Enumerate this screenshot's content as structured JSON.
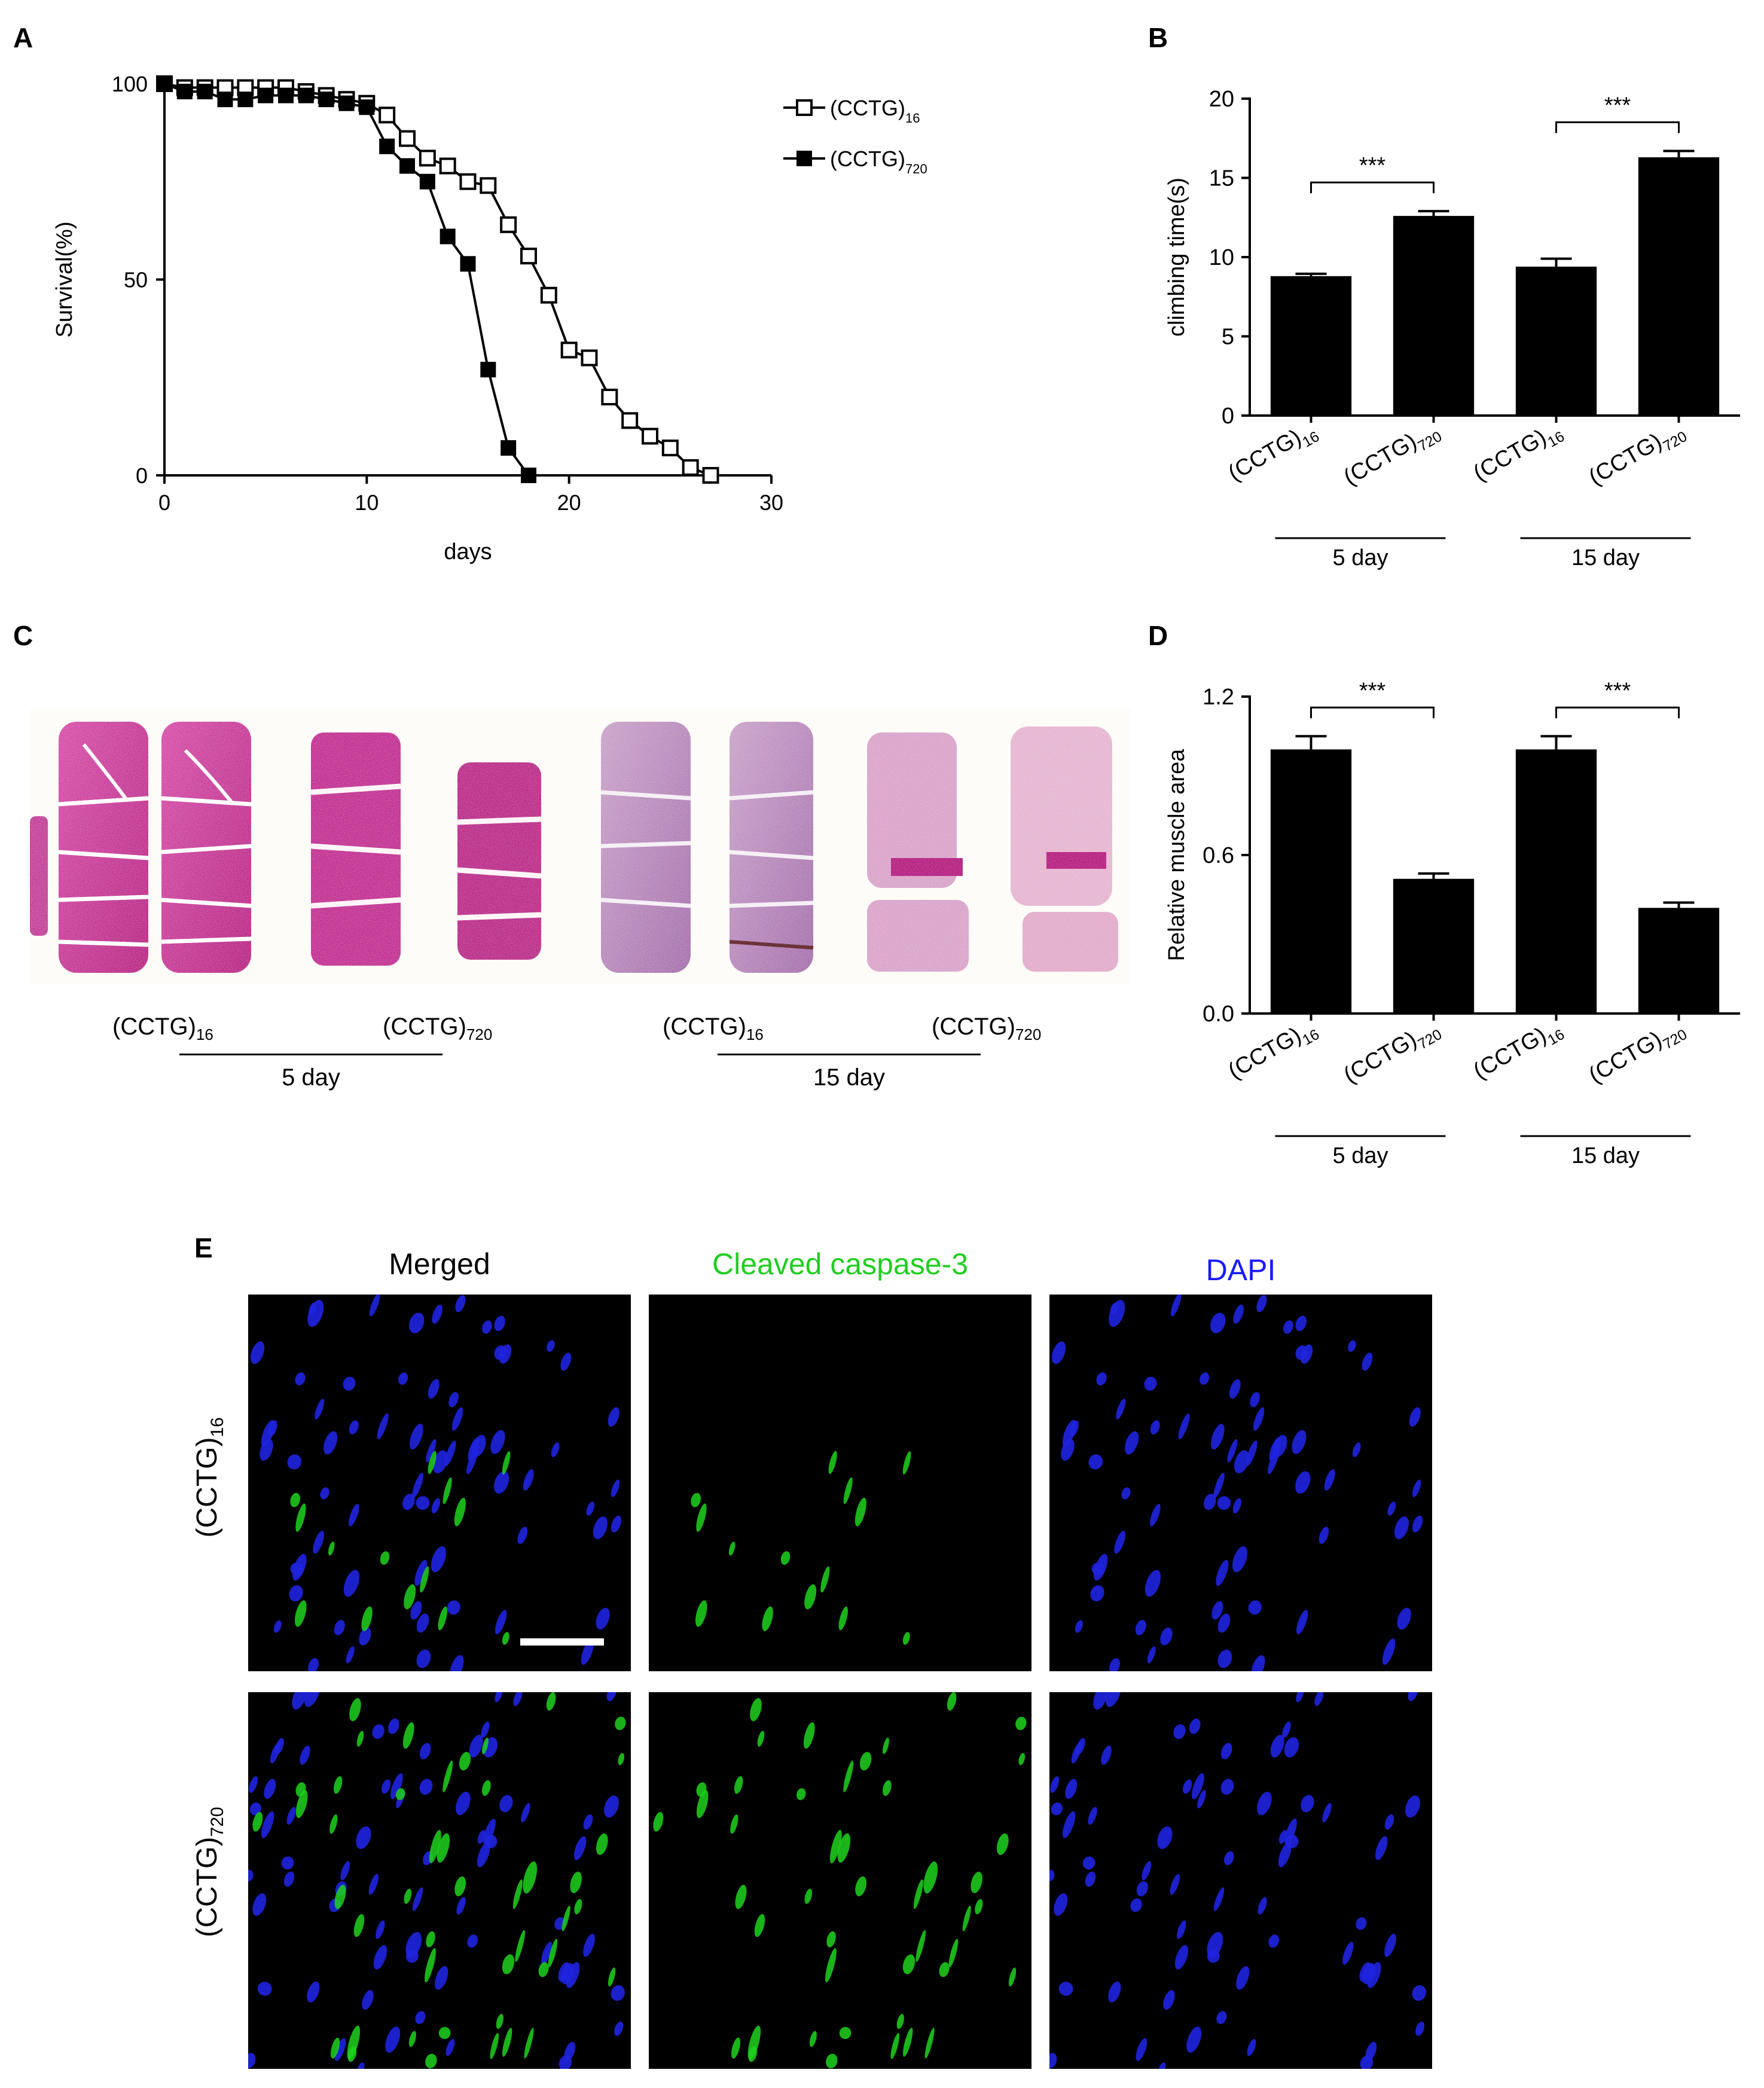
{
  "panel_letters": [
    "A",
    "B",
    "C",
    "D",
    "E"
  ],
  "chart_data": [
    {
      "panel": "A",
      "type": "line",
      "xlabel": "days",
      "ylabel": "Survival(%)",
      "xlim": [
        0,
        30
      ],
      "ylim": [
        0,
        100
      ],
      "xticks": [
        "0",
        "10",
        "20",
        "30"
      ],
      "yticks": [
        "0",
        "50",
        "100"
      ],
      "legend": "top-right",
      "series": [
        {
          "name": "(CCTG)16",
          "marker": "open-square",
          "points": [
            [
              0,
              100
            ],
            [
              1,
              99
            ],
            [
              2,
              99
            ],
            [
              3,
              99
            ],
            [
              4,
              99
            ],
            [
              5,
              99
            ],
            [
              6,
              99
            ],
            [
              7,
              98
            ],
            [
              8,
              97
            ],
            [
              9,
              96
            ],
            [
              10,
              95
            ],
            [
              11,
              92
            ],
            [
              12,
              86
            ],
            [
              13,
              81
            ],
            [
              14,
              79
            ],
            [
              15,
              75
            ],
            [
              16,
              74
            ],
            [
              17,
              64
            ],
            [
              18,
              56
            ],
            [
              19,
              46
            ],
            [
              20,
              32
            ],
            [
              21,
              30
            ],
            [
              22,
              20
            ],
            [
              23,
              14
            ],
            [
              24,
              10
            ],
            [
              25,
              7
            ],
            [
              26,
              2
            ],
            [
              27,
              0
            ]
          ]
        },
        {
          "name": "(CCTG)720",
          "marker": "filled-square",
          "points": [
            [
              0,
              100
            ],
            [
              1,
              98
            ],
            [
              2,
              98
            ],
            [
              3,
              96
            ],
            [
              4,
              96
            ],
            [
              5,
              97
            ],
            [
              6,
              97
            ],
            [
              7,
              97
            ],
            [
              8,
              96
            ],
            [
              9,
              95
            ],
            [
              10,
              94
            ],
            [
              11,
              84
            ],
            [
              12,
              79
            ],
            [
              13,
              75
            ],
            [
              14,
              61
            ],
            [
              15,
              54
            ],
            [
              16,
              27
            ],
            [
              17,
              7
            ],
            [
              18,
              0
            ]
          ]
        }
      ]
    },
    {
      "panel": "B",
      "type": "bar",
      "ylabel": "climbing time(s)",
      "ylim": [
        0,
        20
      ],
      "yticks": [
        "0",
        "5",
        "10",
        "15",
        "20"
      ],
      "categories": [
        "(CCTG)16",
        "(CCTG)720",
        "(CCTG)16",
        "(CCTG)720"
      ],
      "values": [
        8.8,
        12.6,
        9.4,
        16.3
      ],
      "errors": [
        0.15,
        0.3,
        0.5,
        0.4
      ],
      "groups": [
        {
          "label": "5 day",
          "members": [
            0,
            1
          ]
        },
        {
          "label": "15 day",
          "members": [
            2,
            3
          ]
        }
      ],
      "significance": [
        {
          "between": [
            0,
            1
          ],
          "label": "***"
        },
        {
          "between": [
            2,
            3
          ],
          "label": "***"
        }
      ]
    },
    {
      "panel": "D",
      "type": "bar",
      "ylabel": "Relative muscle area",
      "ylim": [
        0,
        1.2
      ],
      "yticks": [
        "0.0",
        "0.6",
        "1.2"
      ],
      "categories": [
        "(CCTG)16",
        "(CCTG)720",
        "(CCTG)16",
        "(CCTG)720"
      ],
      "values": [
        1.0,
        0.51,
        1.0,
        0.4
      ],
      "errors": [
        0.05,
        0.02,
        0.05,
        0.02
      ],
      "groups": [
        {
          "label": "5 day",
          "members": [
            0,
            1
          ]
        },
        {
          "label": "15 day",
          "members": [
            2,
            3
          ]
        }
      ],
      "significance": [
        {
          "between": [
            0,
            1
          ],
          "label": "***"
        },
        {
          "between": [
            2,
            3
          ],
          "label": "***"
        }
      ]
    }
  ],
  "panel_c": {
    "labels": [
      {
        "base": "(CCTG)",
        "sub": "16"
      },
      {
        "base": "(CCTG)",
        "sub": "720"
      },
      {
        "base": "(CCTG)",
        "sub": "16"
      },
      {
        "base": "(CCTG)",
        "sub": "720"
      }
    ],
    "groups": [
      "5 day",
      "15 day"
    ]
  },
  "panel_e": {
    "columns": [
      "Merged",
      "Cleaved caspase-3",
      "DAPI"
    ],
    "column_colors": [
      "#000000",
      "#22cc22",
      "#1a1aff"
    ],
    "rows": [
      {
        "base": "(CCTG)",
        "sub": "16"
      },
      {
        "base": "(CCTG)",
        "sub": "720"
      }
    ]
  }
}
